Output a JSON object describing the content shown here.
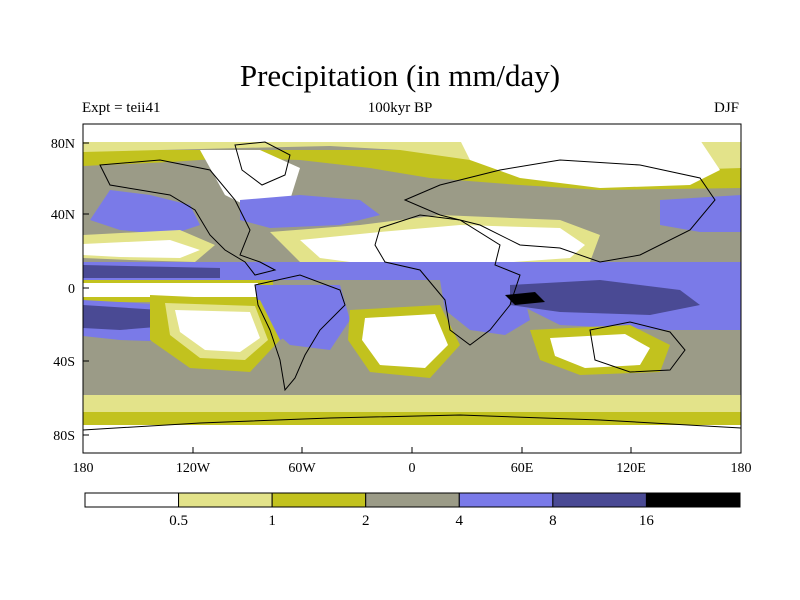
{
  "header": {
    "title": "Precipitation (in mm/day)",
    "left_label": "Expt = teii41",
    "center_label": "100kyr BP",
    "right_label": "DJF"
  },
  "axes": {
    "lat_ticks": [
      "80N",
      "40N",
      "0",
      "40S",
      "80S"
    ],
    "lon_ticks": [
      "180",
      "120W",
      "60W",
      "0",
      "60E",
      "120E",
      "180"
    ]
  },
  "colorbar": {
    "labels": [
      "0.5",
      "1",
      "2",
      "4",
      "8",
      "16"
    ],
    "levels": [
      0.5,
      1,
      2,
      4,
      8,
      16
    ],
    "colors": [
      "#ffffff",
      "#e3e38a",
      "#c2c21e",
      "#9b9b87",
      "#7a7ae8",
      "#4a4a94",
      "#000000"
    ]
  },
  "map_colors": {
    "ocean": "#9b9b87",
    "coast": "#000000"
  }
}
